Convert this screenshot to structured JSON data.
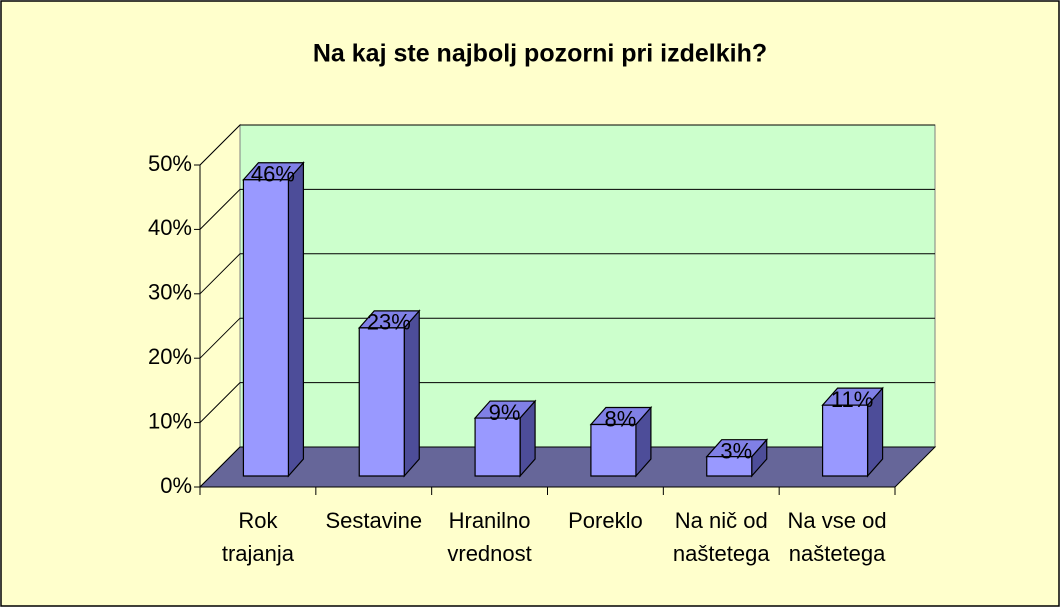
{
  "chart_data": {
    "type": "bar3d",
    "title": "Na kaj ste najbolj pozorni pri izdelkih?",
    "categories": [
      [
        "Rok",
        "trajanja"
      ],
      [
        "Sestavine"
      ],
      [
        "Hranilno",
        "vrednost"
      ],
      [
        "Poreklo"
      ],
      [
        "Na nič od",
        "naštetega"
      ],
      [
        "Na vse od",
        "naštetega"
      ]
    ],
    "values": [
      46,
      23,
      9,
      8,
      3,
      11
    ],
    "value_labels": [
      "46%",
      "23%",
      "9%",
      "8%",
      "3%",
      "11%"
    ],
    "color": "#9999ff",
    "ylim": [
      0,
      50
    ],
    "yticks": [
      {
        "value": 0,
        "label": "0%"
      },
      {
        "value": 10,
        "label": "10%"
      },
      {
        "value": 20,
        "label": "20%"
      },
      {
        "value": 30,
        "label": "30%"
      },
      {
        "value": 40,
        "label": "40%"
      },
      {
        "value": 50,
        "label": "50%"
      }
    ],
    "grid": true
  }
}
